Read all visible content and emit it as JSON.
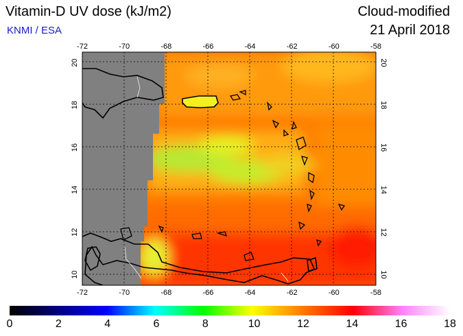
{
  "header": {
    "title": "Vitamin-D UV dose (kJ/m2)",
    "credit": "KNMI / ESA",
    "product": "Cloud-modified",
    "date": "21 April 2018"
  },
  "map": {
    "lon_range": [
      -72,
      -58
    ],
    "lat_range": [
      9.5,
      20.5
    ],
    "lon_ticks": [
      "-72",
      "-70",
      "-68",
      "-66",
      "-64",
      "-62",
      "-60",
      "-58"
    ],
    "lat_ticks": [
      "10",
      "12",
      "14",
      "16",
      "18",
      "20"
    ],
    "no_data_color": "#808080",
    "coastline_color": "#000000",
    "gridline_style": "dotted"
  },
  "colorbar": {
    "min": 0,
    "max": 18,
    "labels": [
      "0",
      "2",
      "4",
      "6",
      "8",
      "10",
      "12",
      "14",
      "16",
      "18"
    ],
    "colors": [
      "#000000",
      "#0000ff",
      "#00ffff",
      "#00ff00",
      "#ffff00",
      "#ff8000",
      "#ff0000",
      "#ff80ff",
      "#ffffff"
    ]
  }
}
